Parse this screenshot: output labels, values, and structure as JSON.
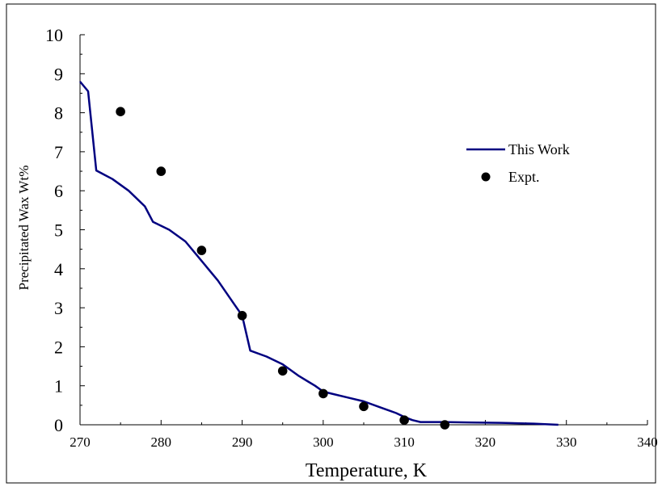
{
  "chart_data": {
    "type": "line",
    "title": "",
    "xlabel": "Temperature, K",
    "ylabel": "Precipitated Wax Wt%",
    "xlim": [
      270,
      340
    ],
    "ylim": [
      0,
      10
    ],
    "x_ticks": [
      270,
      280,
      290,
      300,
      310,
      320,
      330,
      340
    ],
    "y_ticks": [
      0,
      1,
      2,
      3,
      4,
      5,
      6,
      7,
      8,
      9,
      10
    ],
    "grid": false,
    "legend_position": "right",
    "series": [
      {
        "name": "This Work",
        "kind": "line",
        "color": "#000080",
        "x": [
          270,
          271,
          272,
          274,
          276,
          278,
          279,
          281,
          283,
          285,
          287,
          289,
          290,
          291,
          293,
          295,
          297,
          299,
          300,
          301,
          303,
          305,
          307,
          309,
          310,
          311,
          312,
          315,
          318,
          322,
          326,
          329
        ],
        "y": [
          8.8,
          8.55,
          6.52,
          6.3,
          6.0,
          5.6,
          5.2,
          5.0,
          4.7,
          4.2,
          3.7,
          3.1,
          2.8,
          1.9,
          1.75,
          1.55,
          1.25,
          1.0,
          0.85,
          0.8,
          0.7,
          0.6,
          0.45,
          0.3,
          0.2,
          0.12,
          0.07,
          0.07,
          0.06,
          0.05,
          0.03,
          0.0
        ]
      },
      {
        "name": "Expt.",
        "kind": "scatter",
        "color": "#000000",
        "x": [
          275,
          280,
          285,
          290,
          295,
          300,
          305,
          310,
          315
        ],
        "y": [
          8.03,
          6.5,
          4.47,
          2.8,
          1.38,
          0.8,
          0.47,
          0.12,
          0.0
        ]
      }
    ]
  }
}
